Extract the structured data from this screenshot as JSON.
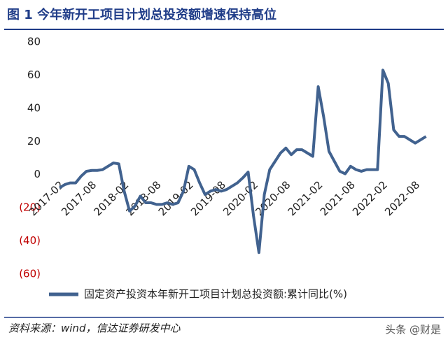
{
  "chart_data": {
    "type": "line",
    "title": "图 1 今年新开工项目计划总投资额增速保持高位",
    "source": "资料来源：wind，信达证券研发中心",
    "watermark": "头条 @财是",
    "categories": [
      "2017-02",
      null,
      null,
      null,
      null,
      null,
      "2017-08",
      null,
      null,
      null,
      null,
      null,
      "2018-02",
      null,
      null,
      null,
      null,
      null,
      "2018-08",
      null,
      null,
      null,
      null,
      null,
      "2019-02",
      null,
      null,
      null,
      null,
      null,
      "2019-08",
      null,
      null,
      null,
      null,
      null,
      "2020-02",
      null,
      null,
      null,
      null,
      null,
      "2020-08",
      null,
      null,
      null,
      null,
      null,
      "2021-02",
      null,
      null,
      null,
      null,
      null,
      "2021-08",
      null,
      null,
      null,
      null,
      null,
      "2022-02",
      null,
      null,
      null,
      null,
      null,
      "2022-08",
      null,
      null
    ],
    "series": [
      {
        "name": "固定资产投资本年新开工项目计划总投资额:累计同比(%)",
        "color": "#41628f",
        "values": [
          -8,
          -6,
          -5,
          -5,
          -1,
          2,
          2.5,
          2.5,
          3,
          5,
          7,
          6.5,
          -10,
          -22,
          -19,
          -13,
          -17,
          -17,
          -18,
          -18,
          -17,
          -18,
          -17,
          -10,
          5,
          3,
          -5,
          -12,
          -10,
          -9,
          -10,
          -9,
          -7,
          -5,
          -2,
          1.5,
          -25,
          -47,
          -12,
          3,
          8,
          13,
          16,
          12,
          15,
          15,
          13,
          11,
          53,
          35,
          14,
          8,
          2,
          0.5,
          5,
          3,
          2,
          3,
          3,
          3,
          63,
          55,
          27,
          23,
          23,
          21,
          19,
          21,
          23
        ]
      }
    ],
    "ylim": [
      -60,
      80
    ],
    "yticks": [
      80,
      60,
      40,
      20,
      0,
      {
        "value": -20,
        "label": "(20)"
      },
      {
        "value": -40,
        "label": "(40)"
      },
      {
        "value": -60,
        "label": "(60)"
      }
    ],
    "negative_tick_color": "#c00000",
    "grid": false
  }
}
